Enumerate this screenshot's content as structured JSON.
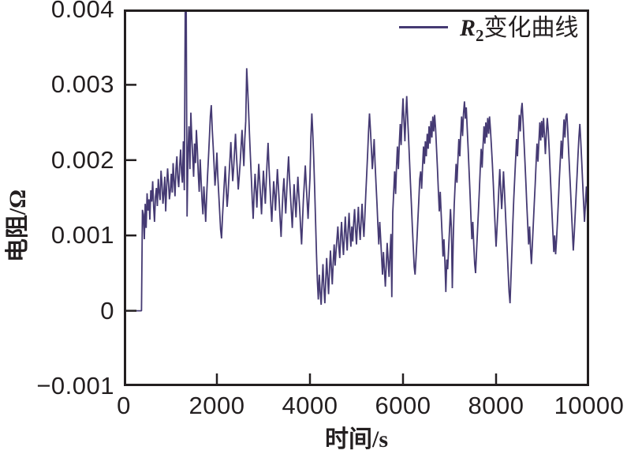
{
  "colors": {
    "background": "#ffffff",
    "axis": "#231f20",
    "line": "#453a73"
  },
  "chart_data": {
    "type": "line",
    "title": "",
    "xlabel": "时间/s",
    "ylabel": "电阻/Ω",
    "xlim": [
      0,
      10000
    ],
    "ylim": [
      -0.001,
      0.004
    ],
    "grid": false,
    "legend_position": "top-right",
    "x_ticks": {
      "values": [
        0,
        2000,
        4000,
        6000,
        8000,
        10000
      ],
      "labels": [
        "0",
        "2000",
        "4000",
        "6000",
        "8000",
        "10000"
      ],
      "inner_marks": [
        2000,
        4000,
        6000,
        8000
      ]
    },
    "y_ticks": {
      "values": [
        -0.001,
        0,
        0.001,
        0.002,
        0.003,
        0.004
      ],
      "labels": [
        "−0.001",
        "0",
        "0.001",
        "0.002",
        "0.003",
        "0.004"
      ],
      "inner_marks": [
        0,
        0.001,
        0.002,
        0.003
      ]
    },
    "legend": {
      "series_label_main": "R",
      "series_label_sub": "2",
      "series_label_rest": "变化曲线"
    },
    "series": [
      {
        "name": "R2变化曲线",
        "color": "#453a73",
        "t_start": 0,
        "t_step": 20,
        "y_scale": 1e-05,
        "values": [
          0,
          0,
          0,
          0,
          0,
          0,
          0,
          0,
          0,
          0,
          0,
          0,
          0,
          0,
          0,
          0,
          0,
          0,
          0,
          0,
          134,
          128,
          95,
          142,
          110,
          156,
          133,
          148,
          121,
          160,
          145,
          172,
          138,
          118,
          151,
          163,
          139,
          175,
          158,
          147,
          186,
          168,
          142,
          155,
          178,
          132,
          165,
          189,
          171,
          148,
          160,
          182,
          157,
          196,
          173,
          152,
          188,
          205,
          177,
          164,
          192,
          214,
          183,
          170,
          225,
          160,
          410,
          405,
          125,
          210,
          245,
          188,
          263,
          232,
          205,
          178,
          222,
          196,
          240,
          215,
          182,
          158,
          201,
          175,
          148,
          128,
          165,
          142,
          118,
          152,
          180,
          205,
          232,
          258,
          273,
          241,
          218,
          192,
          166,
          185,
          210,
          178,
          154,
          132,
          108,
          96,
          125,
          148,
          170,
          192,
          163,
          138,
          155,
          178,
          200,
          224,
          196,
          172,
          189,
          212,
          235,
          207,
          184,
          161,
          178,
          196,
          218,
          240,
          216,
          192,
          228,
          252,
          322,
          298,
          268,
          235,
          205,
          176,
          148,
          122,
          155,
          182,
          160,
          137,
          168,
          195,
          172,
          150,
          128,
          160,
          186,
          164,
          142,
          170,
          198,
          223,
          190,
          165,
          140,
          118,
          146,
          172,
          155,
          133,
          161,
          188,
          166,
          144,
          121,
          98,
          130,
          158,
          176,
          152,
          129,
          157,
          183,
          205,
          178,
          155,
          132,
          110,
          142,
          168,
          146,
          124,
          152,
          178,
          156,
          135,
          110,
          88,
          120,
          148,
          170,
          193,
          167,
          144,
          122,
          150,
          176,
          230,
          262,
          238,
          205,
          165,
          120,
          75,
          40,
          15,
          48,
          25,
          8,
          35,
          62,
          30,
          10,
          42,
          70,
          45,
          22,
          55,
          80,
          58,
          35,
          65,
          88,
          60,
          78,
          95,
          112,
          86,
          70,
          98,
          118,
          92,
          74,
          102,
          125,
          99,
          80,
          108,
          130,
          104,
          85,
          112,
          92,
          118,
          135,
          108,
          88,
          115,
          138,
          112,
          94,
          120,
          142,
          116,
          98,
          125,
          155,
          182,
          210,
          238,
          262,
          240,
          215,
          188,
          205,
          228,
          195,
          168,
          142,
          115,
          88,
          118,
          95,
          70,
          48,
          78,
          55,
          32,
          62,
          90,
          68,
          45,
          75,
          102,
          18,
          130,
          158,
          185,
          155,
          190,
          218,
          188,
          222,
          248,
          220,
          255,
          282,
          252,
          225,
          258,
          285,
          255,
          228,
          198,
          170,
          142,
          112,
          85,
          58,
          48,
          70,
          95,
          122,
          148,
          175,
          185,
          162,
          192,
          218,
          195,
          225,
          205,
          235,
          215,
          245,
          222,
          252,
          230,
          258,
          238,
          260,
          242,
          215,
          188,
          160,
          132,
          158,
          128,
          100,
          72,
          95,
          65,
          25,
          68,
          55,
          82,
          108,
          135,
          108,
          30,
          95,
          140,
          168,
          195,
          170,
          200,
          228,
          205,
          235,
          258,
          232,
          262,
          278,
          255,
          270,
          242,
          215,
          185,
          155,
          125,
          95,
          118,
          88,
          62,
          50,
          78,
          105,
          132,
          160,
          188,
          215,
          190,
          220,
          245,
          222,
          250,
          230,
          256,
          235,
          258,
          240,
          218,
          195,
          168,
          140,
          112,
          85,
          110,
          135,
          162,
          188,
          160,
          135,
          158,
          185,
          160,
          132,
          105,
          78,
          52,
          25,
          10,
          45,
          80,
          115,
          148,
          175,
          202,
          228,
          205,
          235,
          260,
          238,
          266,
          276,
          252,
          225,
          198,
          170,
          142,
          115,
          88,
          112,
          82,
          62,
          88,
          115,
          142,
          168,
          195,
          222,
          198,
          225,
          250,
          226,
          252,
          230,
          256,
          232,
          208,
          235,
          256,
          240,
          215,
          188,
          160,
          132,
          105,
          78,
          100,
          75,
          95,
          120,
          148,
          175,
          200,
          226,
          202,
          230,
          254,
          230,
          258,
          262,
          238,
          212,
          186,
          160,
          132,
          105,
          80,
          102,
          128,
          155,
          180,
          205,
          230,
          248,
          225,
          198,
          172,
          145,
          118,
          142,
          165,
          138,
          112,
          135
        ]
      }
    ]
  }
}
